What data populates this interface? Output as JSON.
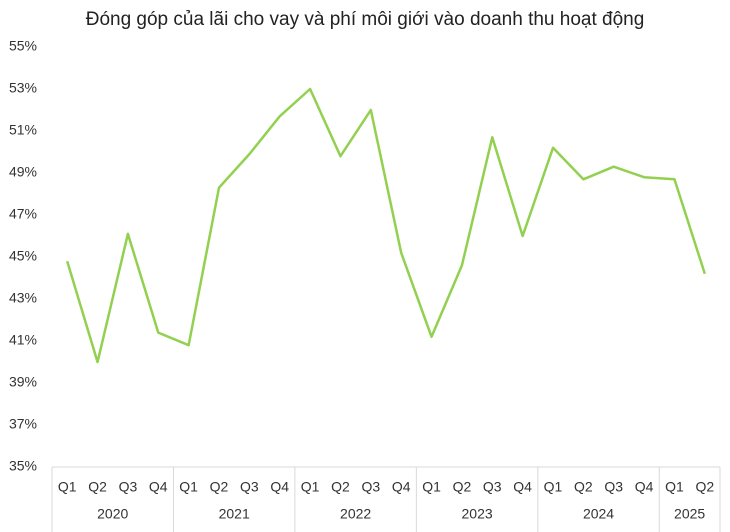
{
  "chart_data": {
    "type": "line",
    "title": "Đóng góp của lãi cho vay và phí môi giới vào doanh thu hoạt động",
    "category_groups": [
      {
        "name": "2020",
        "categories": [
          "Q1",
          "Q2",
          "Q3",
          "Q4"
        ]
      },
      {
        "name": "2021",
        "categories": [
          "Q1",
          "Q2",
          "Q3",
          "Q4"
        ]
      },
      {
        "name": "2022",
        "categories": [
          "Q1",
          "Q2",
          "Q3",
          "Q4"
        ]
      },
      {
        "name": "2023",
        "categories": [
          "Q1",
          "Q2",
          "Q3",
          "Q4"
        ]
      },
      {
        "name": "2024",
        "categories": [
          "Q1",
          "Q2",
          "Q3",
          "Q4"
        ]
      },
      {
        "name": "2025",
        "categories": [
          "Q1",
          "Q2"
        ]
      }
    ],
    "values": [
      44.8,
      40.0,
      46.1,
      41.4,
      40.8,
      48.3,
      49.9,
      51.7,
      53.0,
      49.8,
      52.0,
      45.2,
      41.2,
      44.6,
      50.7,
      46.0,
      50.2,
      48.7,
      49.3,
      48.8,
      48.7,
      44.2
    ],
    "color": "#92d050",
    "ylim": [
      35,
      55
    ],
    "yticks": [
      {
        "value": 35,
        "label": "35%"
      },
      {
        "value": 37,
        "label": "37%"
      },
      {
        "value": 39,
        "label": "39%"
      },
      {
        "value": 41,
        "label": "41%"
      },
      {
        "value": 43,
        "label": "43%"
      },
      {
        "value": 45,
        "label": "45%"
      },
      {
        "value": 47,
        "label": "47%"
      },
      {
        "value": 49,
        "label": "49%"
      },
      {
        "value": 51,
        "label": "51%"
      },
      {
        "value": 53,
        "label": "53%"
      },
      {
        "value": 55,
        "label": "55%"
      }
    ],
    "grid": false
  }
}
